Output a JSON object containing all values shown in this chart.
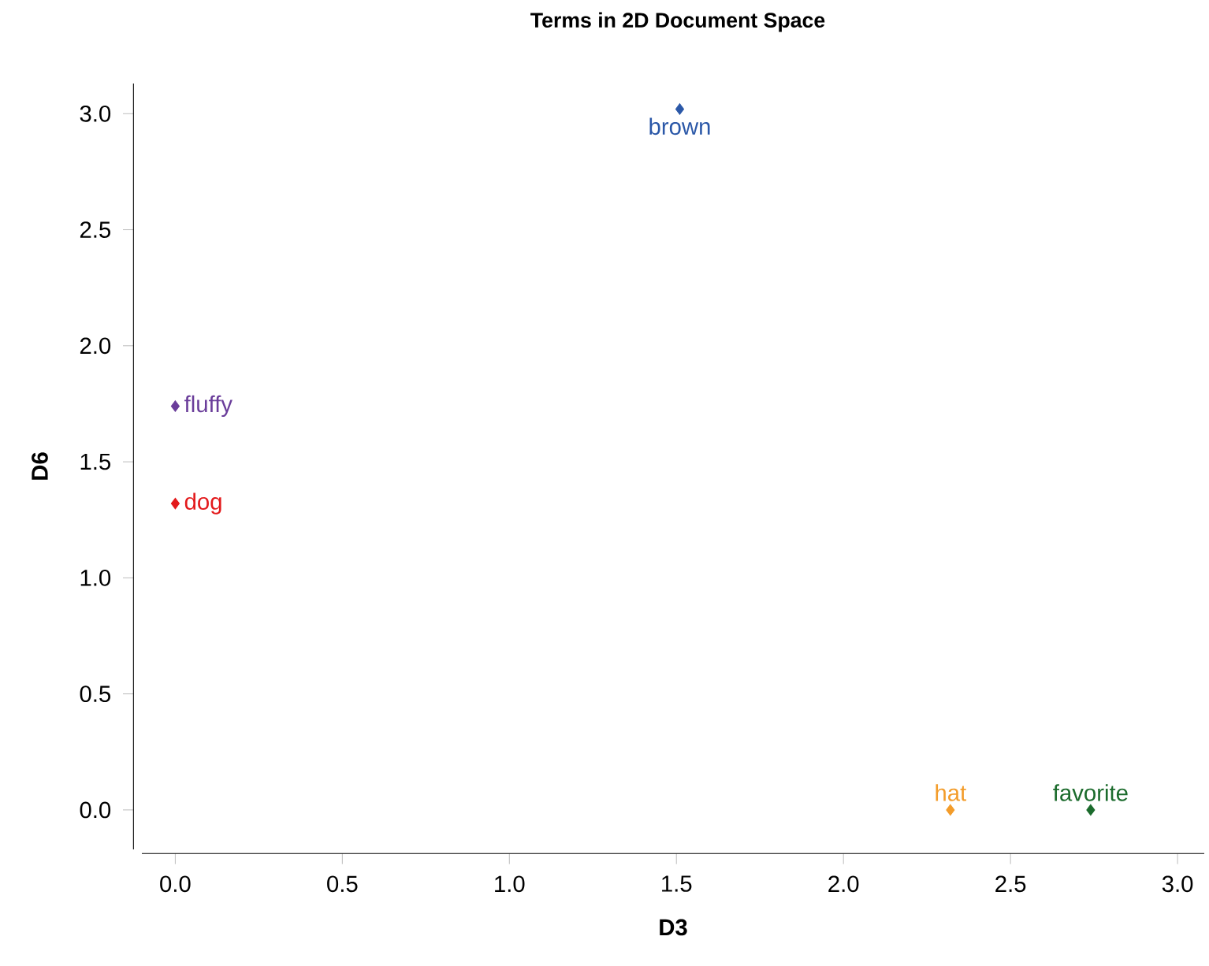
{
  "chart_data": {
    "type": "scatter",
    "title": "Terms in 2D Document Space",
    "xlabel": "D3",
    "ylabel": "D6",
    "series": [
      {
        "name": "brown",
        "color": "#2b58a8",
        "x": [
          1.51
        ],
        "values": [
          3.02
        ]
      },
      {
        "name": "fluffy",
        "color": "#6a3d9a",
        "x": [
          0.0
        ],
        "values": [
          1.74
        ]
      },
      {
        "name": "dog",
        "color": "#e31a1c",
        "x": [
          0.0
        ],
        "values": [
          1.32
        ]
      },
      {
        "name": "hat",
        "color": "#f39c2a",
        "x": [
          2.32
        ],
        "values": [
          0.0
        ]
      },
      {
        "name": "favorite",
        "color": "#1b6b2c",
        "x": [
          2.74
        ],
        "values": [
          0.0
        ]
      }
    ],
    "xlim": [
      -0.1,
      3.08
    ],
    "ylim": [
      -0.17,
      3.13
    ],
    "xticks": [
      {
        "value": 0,
        "label": "0.0"
      },
      {
        "value": 0.5,
        "label": "0.5"
      },
      {
        "value": 1,
        "label": "1.0"
      },
      {
        "value": 1.5,
        "label": "1.5"
      },
      {
        "value": 2,
        "label": "2.0"
      },
      {
        "value": 2.5,
        "label": "2.5"
      },
      {
        "value": 3,
        "label": "3.0"
      }
    ],
    "yticks": [
      {
        "value": 0,
        "label": "0.0"
      },
      {
        "value": 0.5,
        "label": "0.5"
      },
      {
        "value": 1,
        "label": "1.0"
      },
      {
        "value": 1.5,
        "label": "1.5"
      },
      {
        "value": 2,
        "label": "2.0"
      },
      {
        "value": 2.5,
        "label": "2.5"
      },
      {
        "value": 3,
        "label": "3.0"
      }
    ],
    "marker": "diamond"
  }
}
